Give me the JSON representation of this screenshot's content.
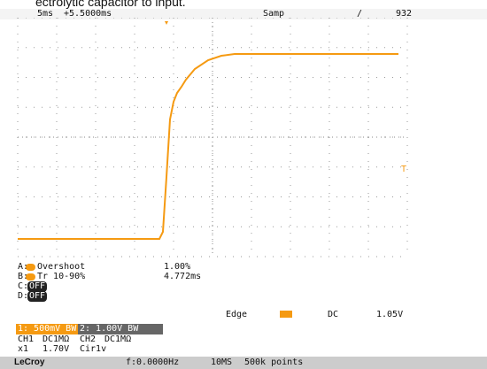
{
  "caption": "ectrolytic capacitor to input.",
  "status_bar": {
    "timebase": "5ms",
    "delay": "+5.5000ms",
    "mode": "Samp",
    "slope": "/",
    "count": "932"
  },
  "trigger_marker": "T",
  "measurements": [
    {
      "slot": "A:",
      "name": "Overshoot",
      "value": "1.00%"
    },
    {
      "slot": "B:",
      "name": "Tr 10-90%",
      "value": "4.772ms"
    },
    {
      "slot": "C:",
      "name": "OFF"
    },
    {
      "slot": "D:",
      "name": "OFF"
    }
  ],
  "trigger": {
    "type": "Edge",
    "coupling": "DC",
    "level": "1.05V"
  },
  "channels": [
    {
      "label": "1: 500mV BW",
      "name": "CH1",
      "coupling": "DC1MΩ",
      "probe": "x1",
      "offset": "1.70V"
    },
    {
      "label": "2: 1.00V BW",
      "name": "CH2",
      "coupling": "DC1MΩ",
      "probe": "Cir1v"
    }
  ],
  "footer": {
    "brand": "LeCroy",
    "frequency": "f:0.0000Hz",
    "rate": "10MS",
    "points": "500k points"
  }
}
